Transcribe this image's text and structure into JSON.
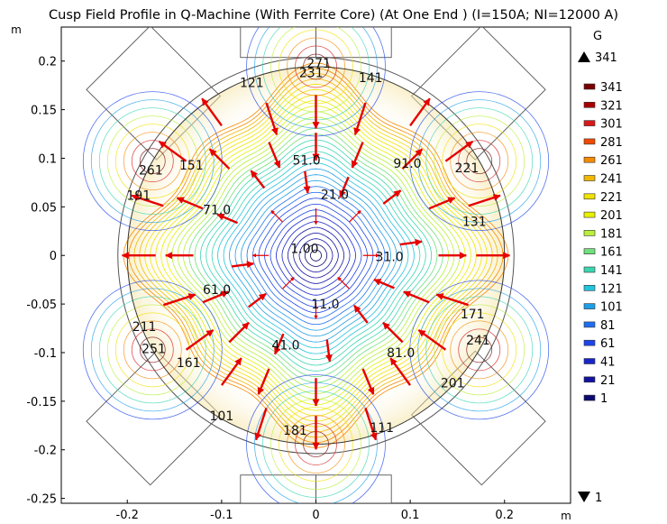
{
  "chart_data": {
    "type": "contour",
    "title": "Cusp Field Profile in Q-Machine (With Ferrite Core) (At One End ) (I=150A; NI=12000 A)",
    "xlabel": "",
    "ylabel": "",
    "x_unit": "m",
    "y_unit": "m",
    "xlim": [
      -0.27,
      0.27
    ],
    "ylim": [
      -0.255,
      0.235
    ],
    "x_ticks": [
      -0.2,
      -0.1,
      0,
      0.1,
      0.2
    ],
    "y_ticks": [
      0.2,
      0.15,
      0.1,
      0.05,
      0,
      -0.05,
      -0.1,
      -0.15,
      -0.2,
      -0.25
    ],
    "x_tick_labels": [
      "-0.2",
      "-0.1",
      "0",
      "0.1",
      "0.2"
    ],
    "y_tick_labels": [
      "0.2",
      "0.15",
      "0.1",
      "0.05",
      "0",
      "-0.05",
      "-0.1",
      "-0.15",
      "-0.2",
      "-0.25"
    ],
    "chamber_radius": 0.2,
    "colorbar": {
      "unit": "G",
      "max_label": "341",
      "min_label": "1",
      "levels": [
        "341",
        "321",
        "301",
        "281",
        "261",
        "241",
        "221",
        "201",
        "181",
        "161",
        "141",
        "121",
        "101",
        "81",
        "61",
        "41",
        "21",
        "1"
      ],
      "colors": [
        "#7a0000",
        "#a80000",
        "#d81818",
        "#f04a00",
        "#f58a00",
        "#f2b800",
        "#f2e200",
        "#e8f000",
        "#b8f03a",
        "#70e07a",
        "#3ad6b0",
        "#22c4dc",
        "#1e9ee8",
        "#1e6ef0",
        "#1c44e8",
        "#1826c8",
        "#1212a0",
        "#0a0a70"
      ]
    },
    "contour_labels": [
      {
        "text": "271",
        "x": 0.003,
        "y": 0.198
      },
      {
        "text": "231",
        "x": -0.005,
        "y": 0.188
      },
      {
        "text": "121",
        "x": -0.068,
        "y": 0.178
      },
      {
        "text": "141",
        "x": 0.058,
        "y": 0.183
      },
      {
        "text": "261",
        "x": -0.175,
        "y": 0.088
      },
      {
        "text": "151",
        "x": -0.132,
        "y": 0.093
      },
      {
        "text": "191",
        "x": -0.188,
        "y": 0.062
      },
      {
        "text": "51.0",
        "x": -0.01,
        "y": 0.098
      },
      {
        "text": "91.0",
        "x": 0.097,
        "y": 0.095
      },
      {
        "text": "221",
        "x": 0.16,
        "y": 0.09
      },
      {
        "text": "21.0",
        "x": 0.02,
        "y": 0.063
      },
      {
        "text": "71.0",
        "x": -0.105,
        "y": 0.047
      },
      {
        "text": "131",
        "x": 0.168,
        "y": 0.035
      },
      {
        "text": "1.00",
        "x": -0.012,
        "y": 0.007
      },
      {
        "text": "31.0",
        "x": 0.078,
        "y": -0.001
      },
      {
        "text": "61.0",
        "x": -0.105,
        "y": -0.035
      },
      {
        "text": "11.0",
        "x": 0.01,
        "y": -0.05
      },
      {
        "text": "171",
        "x": 0.166,
        "y": -0.06
      },
      {
        "text": "211",
        "x": -0.182,
        "y": -0.073
      },
      {
        "text": "241",
        "x": 0.172,
        "y": -0.087
      },
      {
        "text": "251",
        "x": -0.172,
        "y": -0.096
      },
      {
        "text": "41.0",
        "x": -0.032,
        "y": -0.092
      },
      {
        "text": "81.0",
        "x": 0.09,
        "y": -0.1
      },
      {
        "text": "161",
        "x": -0.135,
        "y": -0.11
      },
      {
        "text": "201",
        "x": 0.145,
        "y": -0.131
      },
      {
        "text": "101",
        "x": -0.1,
        "y": -0.165
      },
      {
        "text": "111",
        "x": 0.07,
        "y": -0.177
      },
      {
        "text": "181",
        "x": -0.022,
        "y": -0.18
      }
    ]
  }
}
